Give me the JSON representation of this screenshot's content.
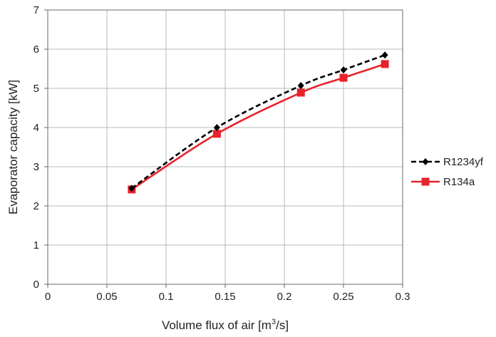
{
  "chart_data": {
    "type": "line",
    "title": "",
    "xlabel": "Volume flux of air [m3/s]",
    "xlabel_parts": {
      "main": "Volume flux of air [m",
      "sup": "3",
      "end": "/s]"
    },
    "ylabel": "Evaporator capacity [kW]",
    "xlim": [
      0,
      0.3
    ],
    "ylim": [
      0,
      7
    ],
    "x_ticks": [
      "0",
      "0.05",
      "0.1",
      "0.15",
      "0.2",
      "0.25",
      "0.3"
    ],
    "y_ticks": [
      "0",
      "1",
      "2",
      "3",
      "4",
      "5",
      "6",
      "7"
    ],
    "grid": true,
    "legend_position": "right",
    "series": [
      {
        "name": "R1234yf",
        "color": "#000000",
        "line_style": "dashed",
        "marker": "diamond",
        "x": [
          0.071,
          0.143,
          0.214,
          0.25,
          0.285
        ],
        "y": [
          2.45,
          4.0,
          5.07,
          5.47,
          5.85
        ]
      },
      {
        "name": "R134a",
        "color": "#e8222a",
        "line_style": "solid",
        "marker": "square",
        "x": [
          0.071,
          0.143,
          0.214,
          0.25,
          0.285
        ],
        "y": [
          2.42,
          3.84,
          4.89,
          5.27,
          5.62
        ]
      }
    ]
  }
}
